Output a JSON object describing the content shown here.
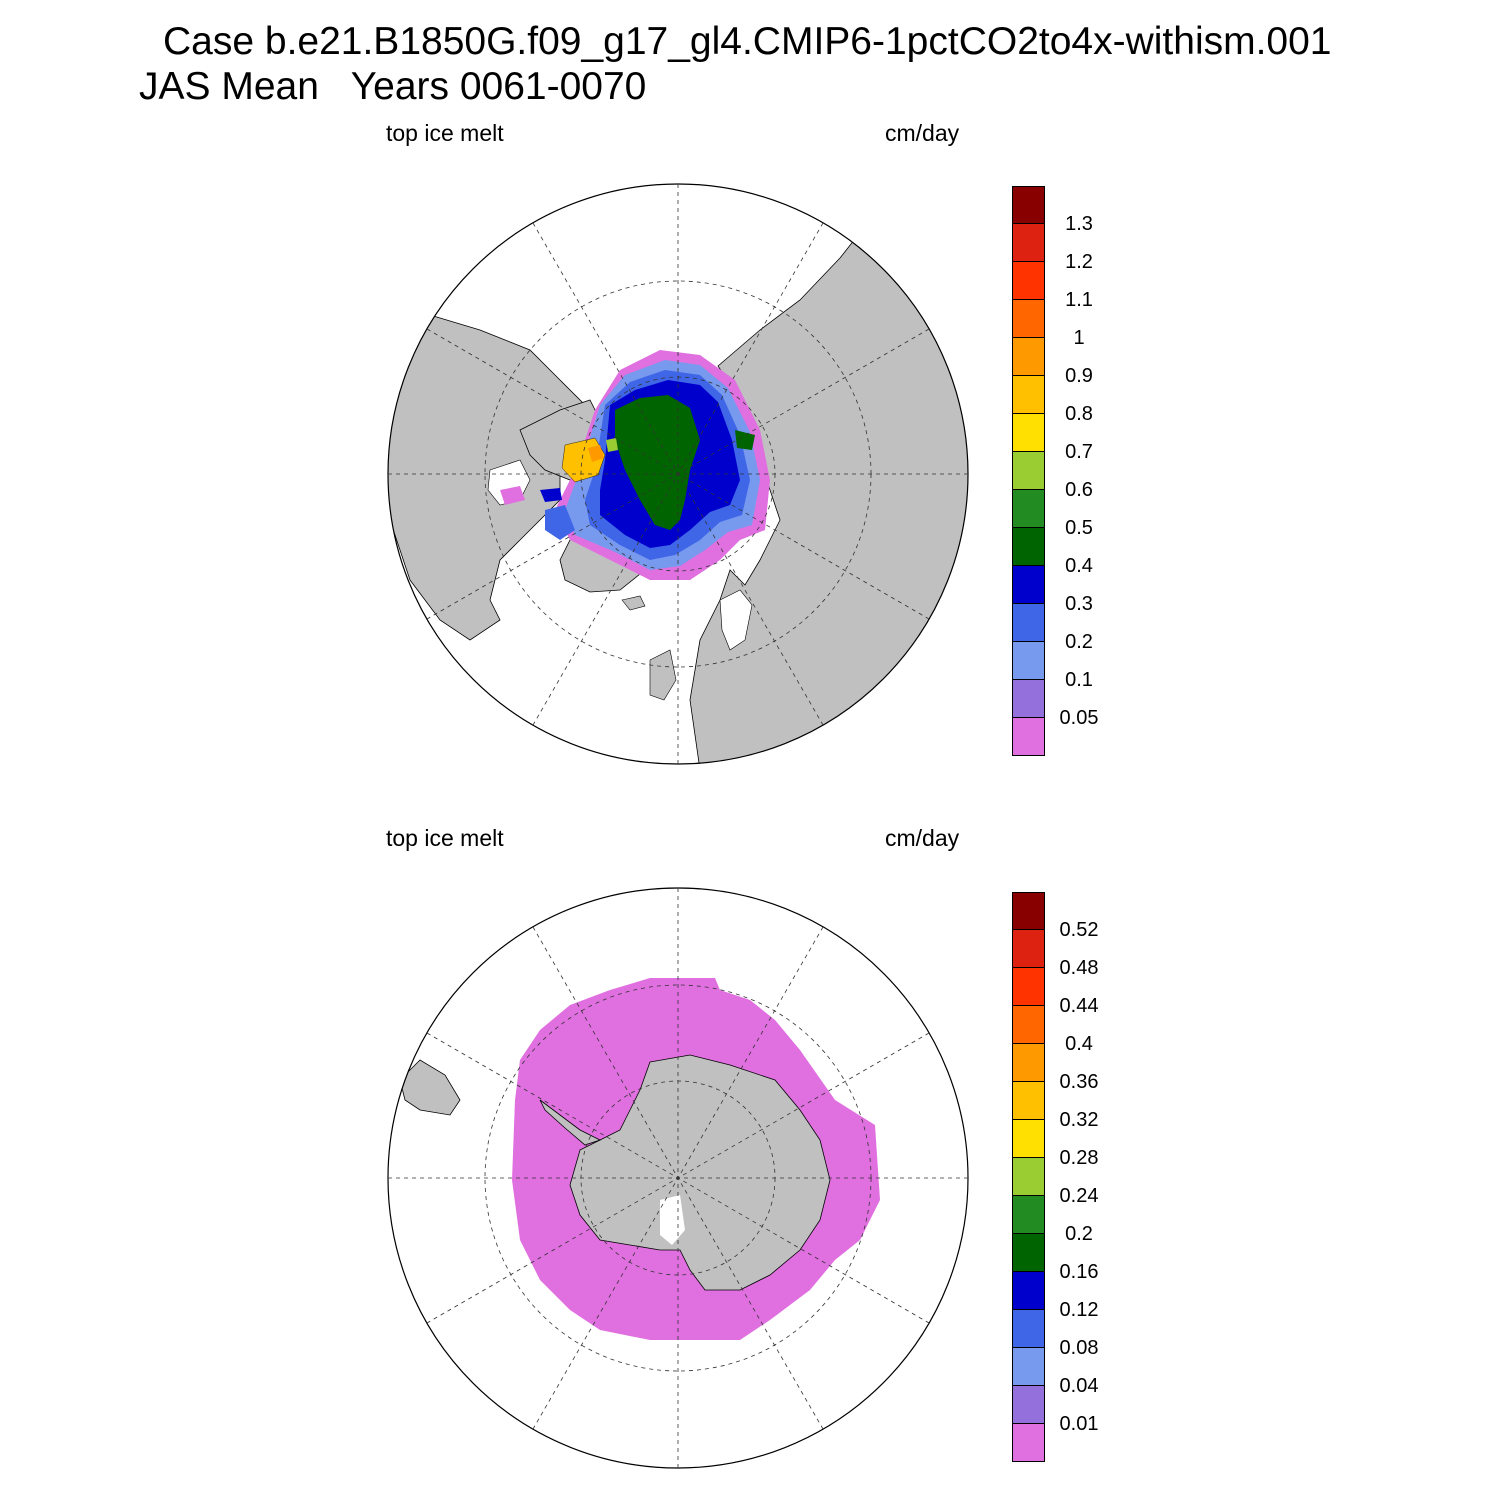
{
  "figure": {
    "title_line1": "Case b.e21.B1850G.f09_g17_gl4.CMIP6-1pctCO2to4x-withism.001",
    "title_line2": "JAS Mean   Years 0061-0070"
  },
  "colors": {
    "land": "#c0c0c0",
    "ocean": "#ffffff",
    "palette": [
      "#e070e0",
      "#9370db",
      "#7799ee",
      "#4066e8",
      "#0000cc",
      "#006400",
      "#228b22",
      "#9acd32",
      "#ffe000",
      "#ffc000",
      "#ff9900",
      "#ff6600",
      "#ff3300",
      "#dd2211",
      "#880000"
    ]
  },
  "panels": [
    {
      "id": "north",
      "left_label": "top ice melt",
      "right_label": "cm/day",
      "hemisphere": "Arctic (north polar stereographic)",
      "colorbar_ticks": [
        "0.05",
        "0.1",
        "0.2",
        "0.3",
        "0.4",
        "0.5",
        "0.6",
        "0.7",
        "0.8",
        "0.9",
        "1",
        "1.1",
        "1.2",
        "1.3"
      ]
    },
    {
      "id": "south",
      "left_label": "top ice melt",
      "right_label": "cm/day",
      "hemisphere": "Antarctic (south polar stereographic)",
      "colorbar_ticks": [
        "0.01",
        "0.04",
        "0.08",
        "0.12",
        "0.16",
        "0.2",
        "0.24",
        "0.28",
        "0.32",
        "0.36",
        "0.4",
        "0.44",
        "0.48",
        "0.52"
      ]
    }
  ]
}
